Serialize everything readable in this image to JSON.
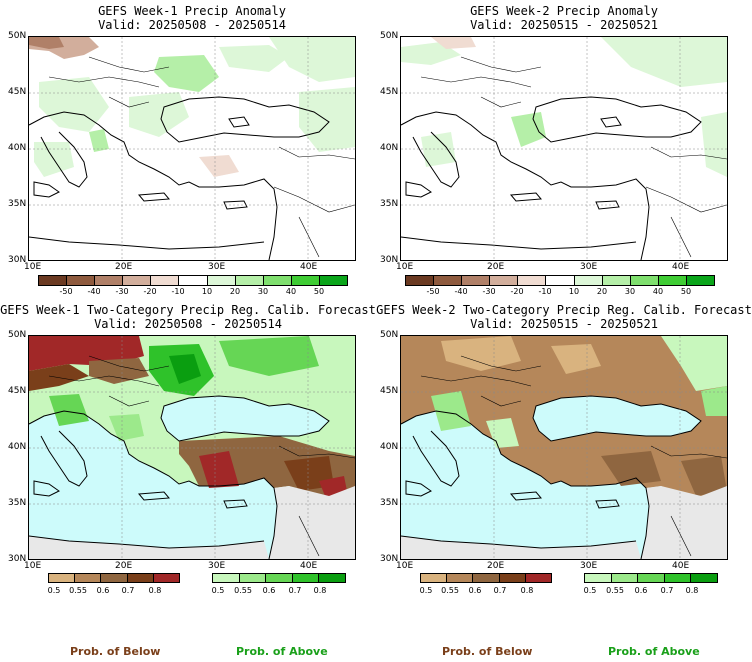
{
  "panels": [
    {
      "title1": "GEFS Week-1 Precip Anomaly",
      "title2": "Valid: 20250508 - 20250514"
    },
    {
      "title1": "GEFS Week-2 Precip Anomaly",
      "title2": "Valid: 20250515 - 20250521"
    },
    {
      "title1": "GEFS Week-1 Two-Category Precip Reg. Calib. Forecast",
      "title2": "Valid: 20250508 - 20250514"
    },
    {
      "title1": "GEFS Week-2 Two-Category Precip Reg. Calib. Forecast",
      "title2": "Valid: 20250515 - 20250521"
    }
  ],
  "lat_labels": [
    "50N",
    "45N",
    "40N",
    "35N",
    "30N"
  ],
  "lon_labels": [
    "10E",
    "20E",
    "30E",
    "40E"
  ],
  "anomaly_colorbar": {
    "labels": [
      "-50",
      "-40",
      "-30",
      "-20",
      "-10",
      "10",
      "20",
      "30",
      "40",
      "50"
    ],
    "colors": [
      "#6b3a22",
      "#8e5a3e",
      "#b08068",
      "#d2ae9c",
      "#f0dcd2",
      "#ffffff",
      "#ddf7d8",
      "#b5efa8",
      "#7fdf6e",
      "#3fcc34",
      "#0aa51a"
    ]
  },
  "prob_below_colorbar": {
    "labels": [
      "0.5",
      "0.55",
      "0.6",
      "0.7",
      "0.8"
    ],
    "colors": [
      "#d9b37f",
      "#b5875a",
      "#8f6640",
      "#7a3f1a",
      "#a12828"
    ]
  },
  "prob_above_colorbar": {
    "labels": [
      "0.5",
      "0.55",
      "0.6",
      "0.7",
      "0.8"
    ],
    "colors": [
      "#c8f7bd",
      "#9ce98b",
      "#66d655",
      "#2fc22a",
      "#0a9e10"
    ]
  },
  "footer": {
    "below": "Prob. of Below",
    "above": "Prob. of Above"
  },
  "colors": {
    "sea": "#cdfbfb",
    "nodata": "#e8e8e8",
    "brown_text": "#7a3f1a",
    "green_text": "#1aa01a"
  }
}
